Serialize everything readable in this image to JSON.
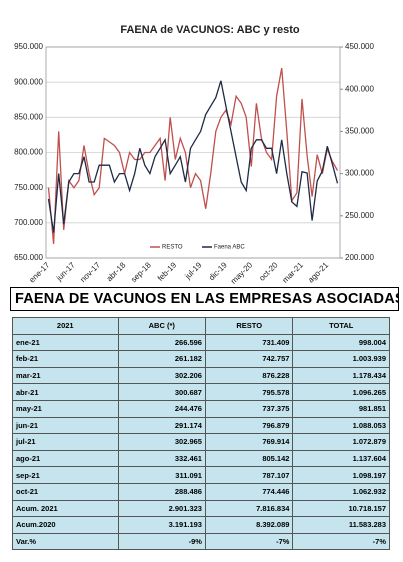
{
  "chart_data": {
    "type": "line",
    "title": "FAENA de VACUNOS: ABC y resto",
    "categories": [
      "ene-17",
      null,
      null,
      null,
      null,
      "jun-17",
      null,
      null,
      null,
      null,
      "nov-17",
      null,
      null,
      null,
      null,
      "abr-18",
      null,
      null,
      null,
      null,
      "sep-18",
      null,
      null,
      null,
      null,
      "feb-19",
      null,
      null,
      null,
      null,
      "jul-19",
      null,
      null,
      null,
      null,
      "dic-19",
      null,
      null,
      null,
      null,
      "may-20",
      null,
      null,
      null,
      null,
      "oct-20",
      null,
      null,
      null,
      null,
      "mar-21",
      null,
      null,
      null,
      null,
      "ago-21",
      null,
      null
    ],
    "series": [
      {
        "name": "RESTO",
        "color": "#c0504d",
        "values": [
          750000,
          670000,
          830000,
          690000,
          760000,
          750000,
          760000,
          810000,
          770000,
          740000,
          750000,
          820000,
          815000,
          810000,
          800000,
          770000,
          800000,
          790000,
          790000,
          800000,
          800000,
          810000,
          820000,
          760000,
          850000,
          790000,
          820000,
          800000,
          750000,
          770000,
          760000,
          720000,
          770000,
          830000,
          850000,
          860000,
          840000,
          880000,
          870000,
          850000,
          780000,
          870000,
          820000,
          800000,
          790000,
          880000,
          920000,
          830000,
          731409,
          742757,
          876228,
          795578,
          737375,
          796879,
          769914,
          805142,
          787107,
          774446
        ]
      },
      {
        "name": "Faena ABC",
        "color": "#1f2a44",
        "axis": "y2",
        "values": [
          270000,
          230000,
          300000,
          240000,
          290000,
          300000,
          300000,
          320000,
          290000,
          290000,
          310000,
          310000,
          310000,
          290000,
          300000,
          300000,
          280000,
          300000,
          330000,
          310000,
          300000,
          320000,
          330000,
          340000,
          300000,
          310000,
          320000,
          290000,
          330000,
          340000,
          350000,
          370000,
          380000,
          390000,
          410000,
          380000,
          350000,
          320000,
          290000,
          280000,
          330000,
          340000,
          340000,
          330000,
          330000,
          300000,
          340000,
          300000,
          266596,
          261182,
          302206,
          300687,
          244476,
          291174,
          302965,
          332461,
          311091,
          288486
        ]
      }
    ],
    "ylim": [
      650000,
      950000
    ],
    "yticks": [
      {
        "value": 650000,
        "label": "650.000"
      },
      {
        "value": 700000,
        "label": "700.000"
      },
      {
        "value": 750000,
        "label": "750.000"
      },
      {
        "value": 800000,
        "label": "800.000"
      },
      {
        "value": 850000,
        "label": "850.000"
      },
      {
        "value": 900000,
        "label": "900.000"
      },
      {
        "value": 950000,
        "label": "950.000"
      }
    ],
    "y2lim": [
      200000,
      450000
    ],
    "y2ticks": [
      {
        "value": 200000,
        "label": "200.000"
      },
      {
        "value": 250000,
        "label": "250.000"
      },
      {
        "value": 300000,
        "label": "300.000"
      },
      {
        "value": 350000,
        "label": "350.000"
      },
      {
        "value": 400000,
        "label": "400.000"
      },
      {
        "value": 450000,
        "label": "450.000"
      }
    ],
    "grid": true
  },
  "table": {
    "title": "FAENA DE VACUNOS EN LAS EMPRESAS ASOCIADAS",
    "header": [
      "2021",
      "ABC (*)",
      "RESTO",
      "TOTAL"
    ],
    "rows": [
      [
        "ene-21",
        "266.596",
        "731.409",
        "998.004"
      ],
      [
        "feb-21",
        "261.182",
        "742.757",
        "1.003.939"
      ],
      [
        "mar-21",
        "302.206",
        "876.228",
        "1.178.434"
      ],
      [
        "abr-21",
        "300.687",
        "795.578",
        "1.096.265"
      ],
      [
        "may-21",
        "244.476",
        "737.375",
        "981.851"
      ],
      [
        "jun-21",
        "291.174",
        "796.879",
        "1.088.053"
      ],
      [
        "jul-21",
        "302.965",
        "769.914",
        "1.072.879"
      ],
      [
        "ago-21",
        "332.461",
        "805.142",
        "1.137.604"
      ],
      [
        "sep-21",
        "311.091",
        "787.107",
        "1.098.197"
      ],
      [
        "oct-21",
        "288.486",
        "774.446",
        "1.062.932"
      ],
      [
        "Acum. 2021",
        "2.901.323",
        "7.816.834",
        "10.718.157"
      ],
      [
        "Acum.2020",
        "3.191.193",
        "8.392.089",
        "11.583.283"
      ],
      [
        "Var.%",
        "-9%",
        "-7%",
        "-7%"
      ]
    ]
  }
}
